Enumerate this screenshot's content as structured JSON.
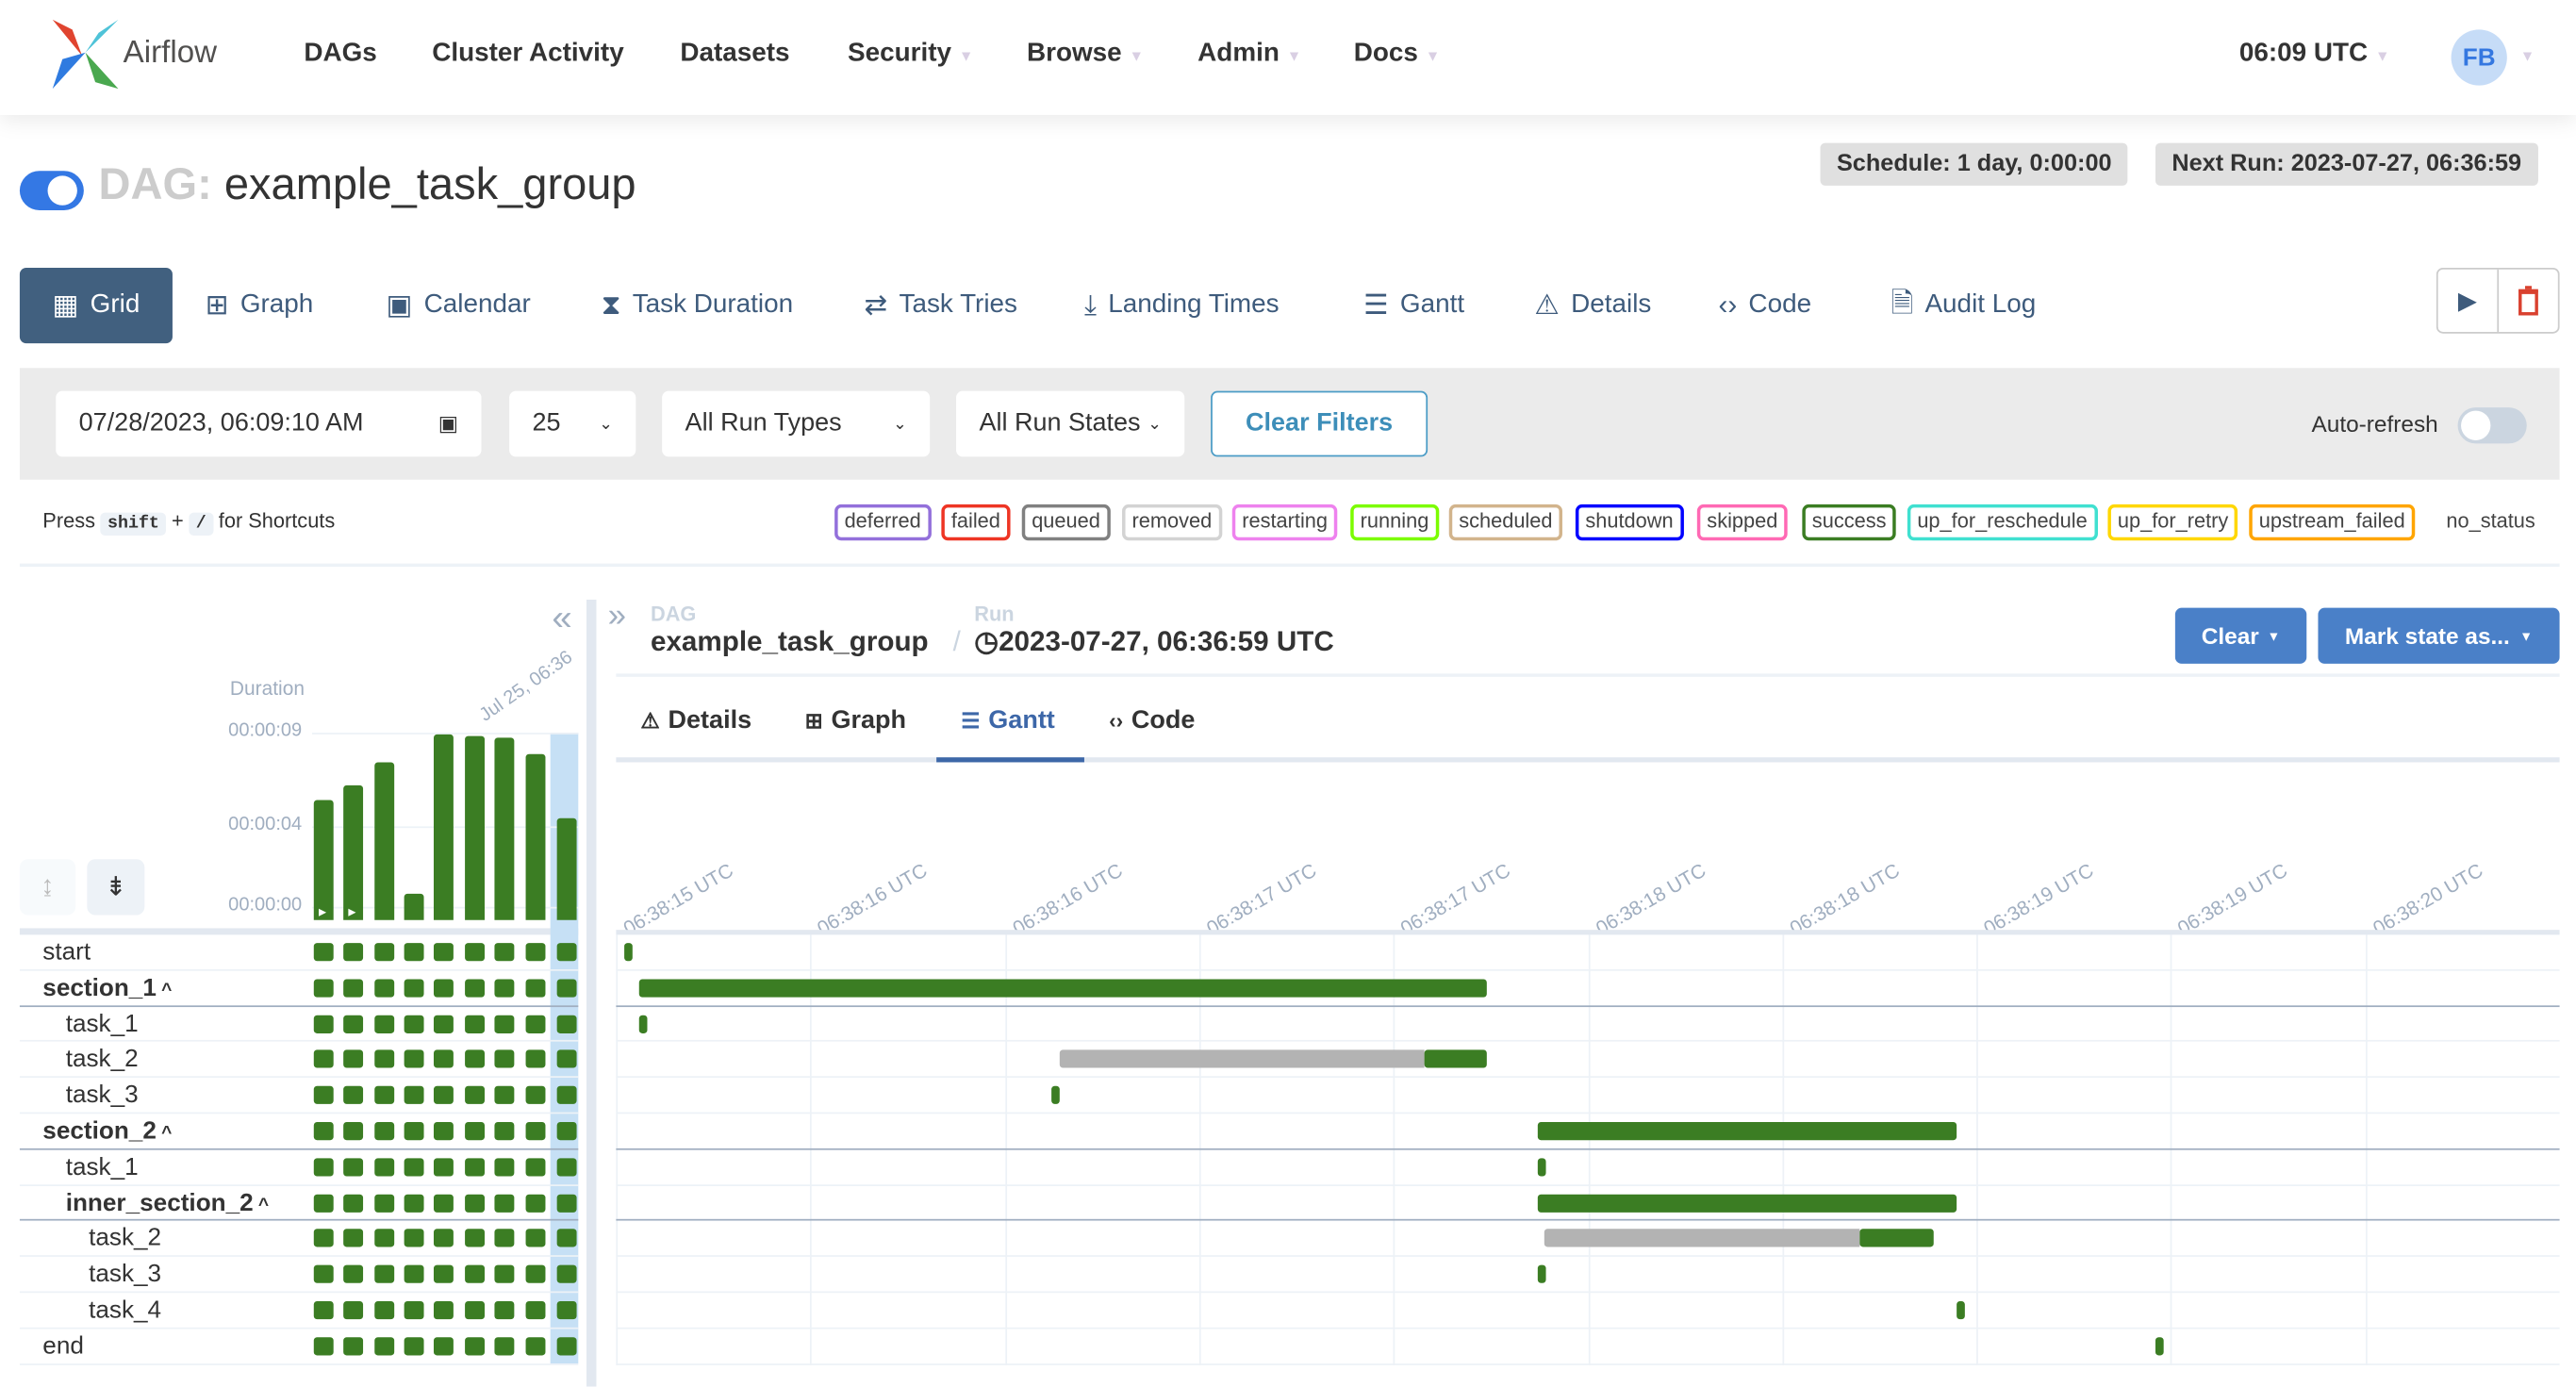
{
  "app": {
    "name": "Airflow",
    "time": "06:09 UTC",
    "user_initials": "FB"
  },
  "nav": [
    {
      "label": "DAGs",
      "dropdown": false
    },
    {
      "label": "Cluster Activity",
      "dropdown": false
    },
    {
      "label": "Datasets",
      "dropdown": false
    },
    {
      "label": "Security",
      "dropdown": true
    },
    {
      "label": "Browse",
      "dropdown": true
    },
    {
      "label": "Admin",
      "dropdown": true
    },
    {
      "label": "Docs",
      "dropdown": true
    }
  ],
  "dag": {
    "prefix": "DAG:",
    "name": "example_task_group",
    "paused": false,
    "schedule": "Schedule: 1 day, 0:00:00",
    "next_run": "Next Run: 2023-07-27, 06:36:59"
  },
  "tabs": [
    {
      "label": "Grid",
      "icon": "grid-icon",
      "active": true
    },
    {
      "label": "Graph",
      "icon": "graph-icon"
    },
    {
      "label": "Calendar",
      "icon": "calendar-icon"
    },
    {
      "label": "Task Duration",
      "icon": "hourglass-icon"
    },
    {
      "label": "Task Tries",
      "icon": "retry-icon"
    },
    {
      "label": "Landing Times",
      "icon": "landing-icon"
    },
    {
      "label": "Gantt",
      "icon": "gantt-icon"
    },
    {
      "label": "Details",
      "icon": "warning-icon"
    },
    {
      "label": "Code",
      "icon": "code-icon"
    },
    {
      "label": "Audit Log",
      "icon": "file-search-icon"
    }
  ],
  "filters": {
    "date": "07/28/2023, 06:09:10 AM",
    "num_runs": "25",
    "run_type": "All Run Types",
    "run_state": "All Run States",
    "clear_label": "Clear Filters",
    "auto_refresh_label": "Auto-refresh",
    "auto_refresh": false
  },
  "shortcuts": {
    "press": "Press",
    "key1": "shift",
    "plus": "+",
    "key2": "/",
    "suffix": "for Shortcuts"
  },
  "legend": [
    {
      "label": "deferred",
      "color": "#9370db"
    },
    {
      "label": "failed",
      "color": "#ee3524"
    },
    {
      "label": "queued",
      "color": "#808080"
    },
    {
      "label": "removed",
      "color": "#d3d3d3"
    },
    {
      "label": "restarting",
      "color": "#ee82ee"
    },
    {
      "label": "running",
      "color": "#7cfc00"
    },
    {
      "label": "scheduled",
      "color": "#d2b48c"
    },
    {
      "label": "shutdown",
      "color": "#0000ff"
    },
    {
      "label": "skipped",
      "color": "#ff69b4"
    },
    {
      "label": "success",
      "color": "#3b7d23"
    },
    {
      "label": "up_for_reschedule",
      "color": "#40e0d0"
    },
    {
      "label": "up_for_retry",
      "color": "#ffd700"
    },
    {
      "label": "upstream_failed",
      "color": "#ffa500"
    },
    {
      "label": "no_status",
      "color": ""
    }
  ],
  "grid": {
    "duration_label": "Duration",
    "y_ticks": [
      "00:00:09",
      "00:00:04",
      "00:00:00"
    ],
    "run_date_label": "Jul 25, 06:36",
    "run_durations_s": [
      5.9,
      6.6,
      7.7,
      1.25,
      9.1,
      9.0,
      8.9,
      8.1,
      5.0
    ],
    "run_states": [
      "success",
      "success",
      "success",
      "success",
      "success",
      "success",
      "success",
      "success",
      "success"
    ],
    "selected_run": 8,
    "tasks": [
      {
        "label": "start",
        "depth": 0,
        "group": false
      },
      {
        "label": "section_1",
        "depth": 0,
        "group": true
      },
      {
        "label": "task_1",
        "depth": 1,
        "group": false
      },
      {
        "label": "task_2",
        "depth": 1,
        "group": false
      },
      {
        "label": "task_3",
        "depth": 1,
        "group": false
      },
      {
        "label": "section_2",
        "depth": 0,
        "group": true
      },
      {
        "label": "task_1",
        "depth": 1,
        "group": false
      },
      {
        "label": "inner_section_2",
        "depth": 1,
        "group": true
      },
      {
        "label": "task_2",
        "depth": 2,
        "group": false
      },
      {
        "label": "task_3",
        "depth": 2,
        "group": false
      },
      {
        "label": "task_4",
        "depth": 2,
        "group": false
      },
      {
        "label": "end",
        "depth": 0,
        "group": false
      }
    ]
  },
  "details": {
    "dag_label": "DAG",
    "dag_name": "example_task_group",
    "run_label": "Run",
    "run_id": "2023-07-27, 06:36:59 UTC",
    "clear_label": "Clear",
    "mark_label": "Mark state as...",
    "tabs": [
      {
        "label": "Details",
        "icon": "warning-icon"
      },
      {
        "label": "Graph",
        "icon": "graph-icon"
      },
      {
        "label": "Gantt",
        "icon": "gantt-icon",
        "active": true
      },
      {
        "label": "Code",
        "icon": "code-icon"
      }
    ]
  },
  "chart_data": {
    "type": "gantt",
    "x_ticks": [
      "06:38:15 UTC",
      "06:38:16 UTC",
      "06:38:16 UTC",
      "06:38:17 UTC",
      "06:38:17 UTC",
      "06:38:18 UTC",
      "06:38:18 UTC",
      "06:38:19 UTC",
      "06:38:19 UTC",
      "06:38:20 UTC"
    ],
    "x_range_s": [
      15.6,
      20.6
    ],
    "tick_values_s": [
      15.6,
      16.1,
      16.6,
      17.1,
      17.6,
      18.1,
      18.6,
      19.1,
      19.6,
      20.1
    ],
    "colors": {
      "success": "#3b7d23",
      "queued": "#b3b3b3"
    },
    "bars": [
      {
        "task": "start",
        "start": 15.62,
        "end": 15.64
      },
      {
        "task": "section_1",
        "start": 15.66,
        "end": 17.84
      },
      {
        "task": "section_1.task_1",
        "start": 15.66,
        "end": 15.68
      },
      {
        "task": "section_1.task_2",
        "queued": 16.74,
        "start": 17.68,
        "end": 17.84
      },
      {
        "task": "section_1.task_3",
        "start": 16.72,
        "end": 16.74
      },
      {
        "task": "section_2",
        "start": 17.97,
        "end": 19.05
      },
      {
        "task": "section_2.task_1",
        "start": 17.97,
        "end": 17.99
      },
      {
        "task": "inner_section_2",
        "start": 17.97,
        "end": 19.05
      },
      {
        "task": "inner_section_2.task_2",
        "queued": 17.99,
        "start": 18.8,
        "end": 18.99
      },
      {
        "task": "inner_section_2.task_3",
        "start": 17.97,
        "end": 17.99
      },
      {
        "task": "inner_section_2.task_4",
        "start": 19.05,
        "end": 19.07
      },
      {
        "task": "end",
        "start": 19.56,
        "end": 19.58
      }
    ]
  }
}
